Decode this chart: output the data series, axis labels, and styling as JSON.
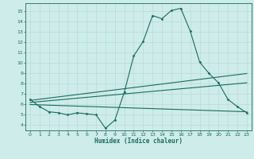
{
  "xlabel": "Humidex (Indice chaleur)",
  "bg_color": "#ceecea",
  "grid_color": "#b8dcd8",
  "line_color": "#1a6b5e",
  "xlim": [
    -0.5,
    23.5
  ],
  "ylim": [
    3.5,
    15.8
  ],
  "yticks": [
    4,
    5,
    6,
    7,
    8,
    9,
    10,
    11,
    12,
    13,
    14,
    15
  ],
  "xticks": [
    0,
    1,
    2,
    3,
    4,
    5,
    6,
    7,
    8,
    9,
    10,
    11,
    12,
    13,
    14,
    15,
    16,
    17,
    18,
    19,
    20,
    21,
    22,
    23
  ],
  "main_series": {
    "x": [
      0,
      1,
      2,
      3,
      4,
      5,
      6,
      7,
      8,
      9,
      10,
      11,
      12,
      13,
      14,
      15,
      16,
      17,
      18,
      19,
      20,
      21,
      22,
      23
    ],
    "y": [
      6.5,
      5.8,
      5.3,
      5.2,
      5.0,
      5.2,
      5.1,
      5.0,
      3.7,
      4.5,
      7.2,
      10.7,
      12.1,
      14.6,
      14.3,
      15.1,
      15.3,
      13.1,
      10.1,
      9.0,
      8.1,
      6.5,
      5.8,
      5.2
    ]
  },
  "trend_lines": [
    {
      "x": [
        0,
        23
      ],
      "y": [
        6.4,
        9.0
      ]
    },
    {
      "x": [
        0,
        23
      ],
      "y": [
        6.2,
        8.1
      ]
    },
    {
      "x": [
        0,
        23
      ],
      "y": [
        6.0,
        5.3
      ]
    }
  ]
}
